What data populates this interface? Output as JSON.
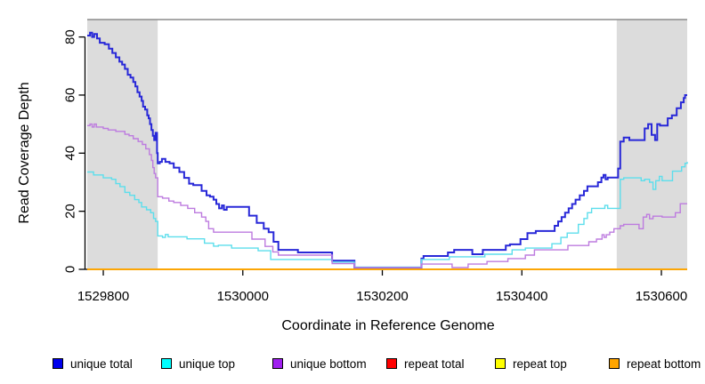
{
  "chart_data": {
    "type": "line",
    "step": "after",
    "title": "",
    "xlabel": "Coordinate in Reference Genome",
    "ylabel": "Read Coverage Depth",
    "xlim": [
      1529777,
      1530637
    ],
    "ylim": [
      0,
      86
    ],
    "x_ticks": [
      1529800,
      1530000,
      1530200,
      1530400,
      1530600
    ],
    "y_ticks": [
      0,
      20,
      40,
      60,
      80
    ],
    "grid": false,
    "legend_position": "bottom",
    "background_color": "#ffffff",
    "shaded_region_color": "#dcdcdc",
    "top_border_color": "#8c8c8c",
    "axis_color": "#000000",
    "shaded_regions": [
      {
        "name": "left-repeat-region",
        "x0": 1529777,
        "x1": 1529878
      },
      {
        "name": "right-repeat-region",
        "x0": 1530536,
        "x1": 1530637
      }
    ],
    "series": [
      {
        "name": "unique total",
        "color": "#2828d8",
        "legend_color": "#0000ee",
        "width": 2,
        "points": [
          [
            1529777,
            80.5
          ],
          [
            1529781,
            81.5
          ],
          [
            1529784,
            80
          ],
          [
            1529787,
            81
          ],
          [
            1529791,
            79.5
          ],
          [
            1529795,
            78
          ],
          [
            1529802,
            77.5
          ],
          [
            1529808,
            76
          ],
          [
            1529813,
            74.5
          ],
          [
            1529818,
            73
          ],
          [
            1529823,
            71.5
          ],
          [
            1529827,
            70.5
          ],
          [
            1529831,
            69
          ],
          [
            1529835,
            67
          ],
          [
            1529839,
            66
          ],
          [
            1529843,
            64.5
          ],
          [
            1529846,
            63
          ],
          [
            1529849,
            61
          ],
          [
            1529852,
            59.5
          ],
          [
            1529855,
            58
          ],
          [
            1529857,
            56
          ],
          [
            1529860,
            55
          ],
          [
            1529863,
            53
          ],
          [
            1529865,
            52
          ],
          [
            1529867,
            50
          ],
          [
            1529869,
            48
          ],
          [
            1529871,
            46
          ],
          [
            1529873,
            44.5
          ],
          [
            1529875,
            47
          ],
          [
            1529877,
            40
          ],
          [
            1529878,
            36.5
          ],
          [
            1529881,
            37
          ],
          [
            1529884,
            38
          ],
          [
            1529889,
            37
          ],
          [
            1529895,
            36.5
          ],
          [
            1529901,
            35
          ],
          [
            1529909,
            33.5
          ],
          [
            1529916,
            31.5
          ],
          [
            1529923,
            29.5
          ],
          [
            1529929,
            29
          ],
          [
            1529941,
            27
          ],
          [
            1529948,
            25.5
          ],
          [
            1529953,
            25
          ],
          [
            1529958,
            24
          ],
          [
            1529962,
            22.5
          ],
          [
            1529966,
            21
          ],
          [
            1529970,
            22
          ],
          [
            1529973,
            20.5
          ],
          [
            1529977,
            21.5
          ],
          [
            1530009,
            18.5
          ],
          [
            1530020,
            16
          ],
          [
            1530030,
            14
          ],
          [
            1530037,
            12.8
          ],
          [
            1530044,
            9.5
          ],
          [
            1530051,
            6.7
          ],
          [
            1530079,
            5.8
          ],
          [
            1530128,
            3
          ],
          [
            1530160,
            0.5
          ],
          [
            1530256,
            3.7
          ],
          [
            1530259,
            4.6
          ],
          [
            1530294,
            5.8
          ],
          [
            1530303,
            6.7
          ],
          [
            1530329,
            5.2
          ],
          [
            1530344,
            6.7
          ],
          [
            1530377,
            8.2
          ],
          [
            1530383,
            8.6
          ],
          [
            1530398,
            10.4
          ],
          [
            1530408,
            12.5
          ],
          [
            1530420,
            13.2
          ],
          [
            1530447,
            15
          ],
          [
            1530452,
            16.5
          ],
          [
            1530457,
            18
          ],
          [
            1530462,
            19.5
          ],
          [
            1530467,
            21
          ],
          [
            1530472,
            22.5
          ],
          [
            1530477,
            24
          ],
          [
            1530483,
            25.5
          ],
          [
            1530489,
            27
          ],
          [
            1530494,
            28.6
          ],
          [
            1530509,
            30
          ],
          [
            1530514,
            31.6
          ],
          [
            1530517,
            32.5
          ],
          [
            1530520,
            31
          ],
          [
            1530523,
            31.6
          ],
          [
            1530538,
            34.7
          ],
          [
            1530541,
            44
          ],
          [
            1530546,
            45.4
          ],
          [
            1530554,
            44.5
          ],
          [
            1530576,
            48.5
          ],
          [
            1530581,
            50
          ],
          [
            1530586,
            46.3
          ],
          [
            1530591,
            44.5
          ],
          [
            1530594,
            50
          ],
          [
            1530598,
            49.5
          ],
          [
            1530609,
            52
          ],
          [
            1530615,
            53
          ],
          [
            1530622,
            55.5
          ],
          [
            1530628,
            57.5
          ],
          [
            1530632,
            59
          ],
          [
            1530634,
            60
          ],
          [
            1530637,
            60
          ]
        ]
      },
      {
        "name": "unique top",
        "color": "#5cdeec",
        "legend_color": "#00ffff",
        "width": 1.4,
        "points": [
          [
            1529777,
            33.5
          ],
          [
            1529786,
            32.5
          ],
          [
            1529800,
            31.5
          ],
          [
            1529812,
            31
          ],
          [
            1529818,
            29.5
          ],
          [
            1529824,
            28.5
          ],
          [
            1529831,
            26.5
          ],
          [
            1529838,
            25.5
          ],
          [
            1529845,
            24
          ],
          [
            1529851,
            23
          ],
          [
            1529855,
            21.5
          ],
          [
            1529862,
            20.5
          ],
          [
            1529868,
            19.5
          ],
          [
            1529872,
            17.5
          ],
          [
            1529875,
            16.5
          ],
          [
            1529878,
            11.5
          ],
          [
            1529885,
            11
          ],
          [
            1529889,
            12
          ],
          [
            1529893,
            11.2
          ],
          [
            1529920,
            10.5
          ],
          [
            1529945,
            9
          ],
          [
            1529958,
            8
          ],
          [
            1529965,
            8.3
          ],
          [
            1529984,
            7.3
          ],
          [
            1530022,
            6.4
          ],
          [
            1530040,
            3.4
          ],
          [
            1530128,
            2.5
          ],
          [
            1530160,
            0.8
          ],
          [
            1530256,
            3.4
          ],
          [
            1530296,
            4.3
          ],
          [
            1530347,
            5.2
          ],
          [
            1530386,
            6.7
          ],
          [
            1530405,
            7.3
          ],
          [
            1530443,
            8.8
          ],
          [
            1530456,
            11
          ],
          [
            1530465,
            12.5
          ],
          [
            1530481,
            15.5
          ],
          [
            1530489,
            17.5
          ],
          [
            1530494,
            19.5
          ],
          [
            1530500,
            21
          ],
          [
            1530519,
            22
          ],
          [
            1530523,
            21
          ],
          [
            1530541,
            31
          ],
          [
            1530546,
            31.5
          ],
          [
            1530571,
            30.5
          ],
          [
            1530576,
            31
          ],
          [
            1530583,
            30
          ],
          [
            1530588,
            27.5
          ],
          [
            1530592,
            30.5
          ],
          [
            1530597,
            32
          ],
          [
            1530601,
            30.5
          ],
          [
            1530616,
            33.8
          ],
          [
            1530629,
            35.3
          ],
          [
            1530634,
            36.5
          ],
          [
            1530637,
            37
          ]
        ]
      },
      {
        "name": "unique bottom",
        "color": "#bd7bdf",
        "legend_color": "#a020f0",
        "width": 1.4,
        "points": [
          [
            1529777,
            49.5
          ],
          [
            1529781,
            50
          ],
          [
            1529784,
            49
          ],
          [
            1529787,
            50
          ],
          [
            1529790,
            49
          ],
          [
            1529800,
            48.5
          ],
          [
            1529807,
            48
          ],
          [
            1529818,
            47.5
          ],
          [
            1529831,
            46.5
          ],
          [
            1529837,
            46
          ],
          [
            1529843,
            45
          ],
          [
            1529850,
            44
          ],
          [
            1529856,
            43
          ],
          [
            1529861,
            41.5
          ],
          [
            1529866,
            39.5
          ],
          [
            1529869,
            37.5
          ],
          [
            1529871,
            35
          ],
          [
            1529873,
            33
          ],
          [
            1529875,
            31.5
          ],
          [
            1529878,
            25
          ],
          [
            1529885,
            24.5
          ],
          [
            1529894,
            23.5
          ],
          [
            1529901,
            23
          ],
          [
            1529911,
            22
          ],
          [
            1529921,
            21
          ],
          [
            1529931,
            19.5
          ],
          [
            1529941,
            18
          ],
          [
            1529947,
            16.5
          ],
          [
            1529951,
            14
          ],
          [
            1529958,
            12.8
          ],
          [
            1530013,
            10.4
          ],
          [
            1530032,
            7.9
          ],
          [
            1530043,
            6
          ],
          [
            1530051,
            4.9
          ],
          [
            1530128,
            2
          ],
          [
            1530160,
            0.6
          ],
          [
            1530256,
            1.8
          ],
          [
            1530300,
            0.6
          ],
          [
            1530323,
            1.8
          ],
          [
            1530350,
            2.7
          ],
          [
            1530380,
            3.7
          ],
          [
            1530405,
            4.9
          ],
          [
            1530418,
            6.7
          ],
          [
            1530466,
            8.2
          ],
          [
            1530496,
            9.5
          ],
          [
            1530507,
            10.4
          ],
          [
            1530515,
            11.9
          ],
          [
            1530518,
            11
          ],
          [
            1530521,
            11.9
          ],
          [
            1530526,
            12.8
          ],
          [
            1530532,
            14
          ],
          [
            1530541,
            15
          ],
          [
            1530546,
            15.5
          ],
          [
            1530568,
            14
          ],
          [
            1530574,
            18
          ],
          [
            1530579,
            18.9
          ],
          [
            1530583,
            17.4
          ],
          [
            1530588,
            18.3
          ],
          [
            1530601,
            18
          ],
          [
            1530620,
            19.5
          ],
          [
            1530627,
            22.6
          ],
          [
            1530637,
            22.6
          ]
        ]
      },
      {
        "name": "repeat total",
        "color": "#e00000",
        "legend_color": "#ff0000",
        "width": 1.4,
        "points": [
          [
            1529777,
            0
          ],
          [
            1530637,
            0
          ]
        ]
      },
      {
        "name": "repeat top",
        "color": "#ffff00",
        "legend_color": "#ffff00",
        "width": 1.4,
        "points": [
          [
            1529777,
            0
          ],
          [
            1530637,
            0
          ]
        ]
      },
      {
        "name": "repeat bottom",
        "color": "#ffa500",
        "legend_color": "#ffa500",
        "width": 1.7,
        "points": [
          [
            1529777,
            0
          ],
          [
            1530637,
            0
          ]
        ]
      }
    ]
  }
}
